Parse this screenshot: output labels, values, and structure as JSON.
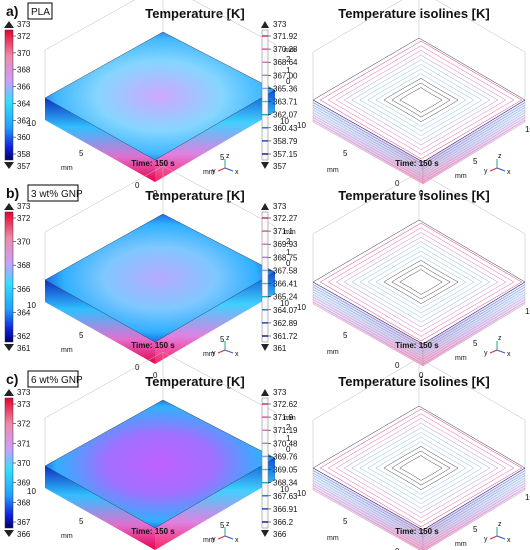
{
  "panels": [
    {
      "letter": "a)",
      "material": "PLA",
      "title_left": "Temperature [K]",
      "title_right": "Temperature isolines [K]",
      "time": "Time: 150 s",
      "unit": "mm",
      "z_ticks": [
        "2",
        "1",
        "0"
      ],
      "y_ticks": [
        "10",
        "5",
        "0"
      ],
      "x_ticks": [
        "0",
        "5",
        "10"
      ],
      "left_scale": {
        "top": "373",
        "bottom": "357",
        "ticks": [
          "372",
          "370",
          "368",
          "366",
          "364",
          "362",
          "360",
          "358"
        ]
      },
      "right_scale": {
        "top": "373",
        "bottom": "357",
        "ticks": [
          "371.92",
          "370.28",
          "368.64",
          "367.00",
          "365.36",
          "363.71",
          "362.07",
          "360.43",
          "358.79",
          "357.15"
        ]
      }
    },
    {
      "letter": "b)",
      "material": "3 wt% GNP",
      "title_left": "Temperature [K]",
      "title_right": "Temperature isolines [K]",
      "time": "Time: 150 s",
      "unit": "mm",
      "z_ticks": [
        "2",
        "1",
        "0"
      ],
      "y_ticks": [
        "10",
        "5",
        "0"
      ],
      "x_ticks": [
        "0",
        "5",
        "10"
      ],
      "left_scale": {
        "top": "373",
        "bottom": "361",
        "ticks": [
          "372",
          "370",
          "368",
          "366",
          "364",
          "362"
        ]
      },
      "right_scale": {
        "top": "373",
        "bottom": "361",
        "ticks": [
          "372.27",
          "371.1",
          "369.93",
          "368.75",
          "367.58",
          "366.41",
          "365.24",
          "364.07",
          "362.89",
          "361.72"
        ]
      }
    },
    {
      "letter": "c)",
      "material": "6 wt% GNP",
      "title_left": "Temperature [K]",
      "title_right": "Temperature isolines [K]",
      "time": "Time: 150 s",
      "unit": "mm",
      "z_ticks": [
        "2",
        "1",
        "0"
      ],
      "y_ticks": [
        "10",
        "5",
        "0"
      ],
      "x_ticks": [
        "0",
        "5",
        "10"
      ],
      "left_scale": {
        "top": "373",
        "bottom": "366",
        "ticks": [
          "373",
          "372",
          "371",
          "370",
          "369",
          "368",
          "367"
        ]
      },
      "right_scale": {
        "top": "373",
        "bottom": "366",
        "ticks": [
          "372.62",
          "371.9",
          "371.19",
          "370.48",
          "369.76",
          "369.05",
          "368.34",
          "367.63",
          "366.91",
          "366.2"
        ]
      }
    }
  ],
  "axis_triad": {
    "z": "z",
    "y": "y",
    "x": "x"
  },
  "colors": {
    "hot": "#e8004c",
    "mid_hot": "#e060d0",
    "mid": "#9fc0ff",
    "cool": "#20d0e8",
    "cold": "#1030d0",
    "coldest": "#000090"
  }
}
